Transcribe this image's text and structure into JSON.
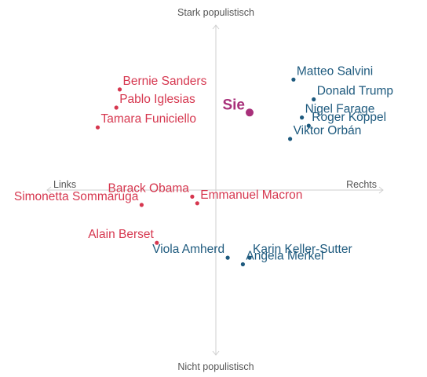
{
  "chart_data": {
    "type": "scatter",
    "axes": {
      "top": "Stark populistisch",
      "bottom": "Nicht populistisch",
      "left": "Links",
      "right": "Rechts"
    },
    "xlim": [
      -1,
      1
    ],
    "ylim": [
      -1,
      1
    ],
    "grid": false,
    "colors": {
      "left": "#d6374f",
      "right": "#1e5a7e",
      "you": "#a8307a",
      "axis": "#cfcfcf"
    },
    "points": [
      {
        "label": "Bernie Sanders",
        "x": -0.57,
        "y": 0.61,
        "group": "left",
        "label_side": "right"
      },
      {
        "label": "Pablo Iglesias",
        "x": -0.59,
        "y": 0.5,
        "group": "left",
        "label_side": "right"
      },
      {
        "label": "Tamara Funiciello",
        "x": -0.7,
        "y": 0.38,
        "group": "left",
        "label_side": "right"
      },
      {
        "label": "Barack Obama",
        "x": -0.14,
        "y": -0.04,
        "group": "left",
        "label_side": "left"
      },
      {
        "label": "Emmanuel Macron",
        "x": -0.11,
        "y": -0.08,
        "group": "left",
        "label_side": "right"
      },
      {
        "label": "Simonetta Sommaruga",
        "x": -0.44,
        "y": -0.09,
        "group": "left",
        "label_side": "left"
      },
      {
        "label": "Alain Berset",
        "x": -0.35,
        "y": -0.32,
        "group": "left",
        "label_side": "left"
      },
      {
        "label": "Viola Amherd",
        "x": 0.07,
        "y": -0.41,
        "group": "right",
        "label_side": "left"
      },
      {
        "label": "Karin Keller-Sutter",
        "x": 0.2,
        "y": -0.41,
        "group": "right",
        "label_side": "right"
      },
      {
        "label": "Angela Merkel",
        "x": 0.16,
        "y": -0.45,
        "group": "right",
        "label_side": "right"
      },
      {
        "label": "Matteo Salvini",
        "x": 0.46,
        "y": 0.67,
        "group": "right",
        "label_side": "right"
      },
      {
        "label": "Donald Trump",
        "x": 0.58,
        "y": 0.55,
        "group": "right",
        "label_side": "right"
      },
      {
        "label": "Nigel Farage",
        "x": 0.51,
        "y": 0.44,
        "group": "right",
        "label_side": "right"
      },
      {
        "label": "Roger Köppel",
        "x": 0.55,
        "y": 0.39,
        "group": "right",
        "label_side": "right"
      },
      {
        "label": "Viktor Orbán",
        "x": 0.44,
        "y": 0.31,
        "group": "right",
        "label_side": "right"
      },
      {
        "label": "Sie",
        "x": 0.2,
        "y": 0.47,
        "group": "you",
        "label_side": "left"
      }
    ]
  }
}
